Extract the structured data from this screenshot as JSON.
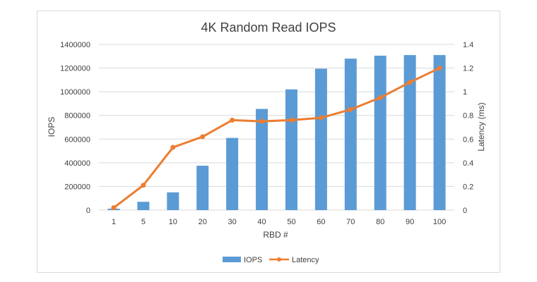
{
  "chart_data": {
    "type": "bar",
    "title": "4K Random Read IOPS",
    "xlabel": "RBD #",
    "ylabel": "IOPS",
    "y2label": "Latency (ms)",
    "categories": [
      "1",
      "5",
      "10",
      "20",
      "30",
      "40",
      "50",
      "60",
      "70",
      "80",
      "90",
      "100"
    ],
    "ylim": [
      0,
      1400000
    ],
    "y2lim": [
      0,
      1.4
    ],
    "yticks": [
      "0",
      "200000",
      "400000",
      "600000",
      "800000",
      "1000000",
      "1200000",
      "1400000"
    ],
    "y2ticks": [
      "0",
      "0.2",
      "0.4",
      "0.6",
      "0.8",
      "1",
      "1.2",
      "1.4"
    ],
    "grid": true,
    "legend_position": "bottom",
    "series": [
      {
        "name": "IOPS",
        "type": "bar",
        "axis": "left",
        "color": "#5b9bd5",
        "values": [
          12000,
          70000,
          150000,
          375000,
          610000,
          855000,
          1020000,
          1195000,
          1280000,
          1305000,
          1310000,
          1310000
        ]
      },
      {
        "name": "Latency",
        "type": "line",
        "axis": "right",
        "color": "#ed7d31",
        "values": [
          0.02,
          0.21,
          0.53,
          0.62,
          0.76,
          0.75,
          0.76,
          0.78,
          0.85,
          0.95,
          1.08,
          1.2
        ]
      }
    ]
  }
}
